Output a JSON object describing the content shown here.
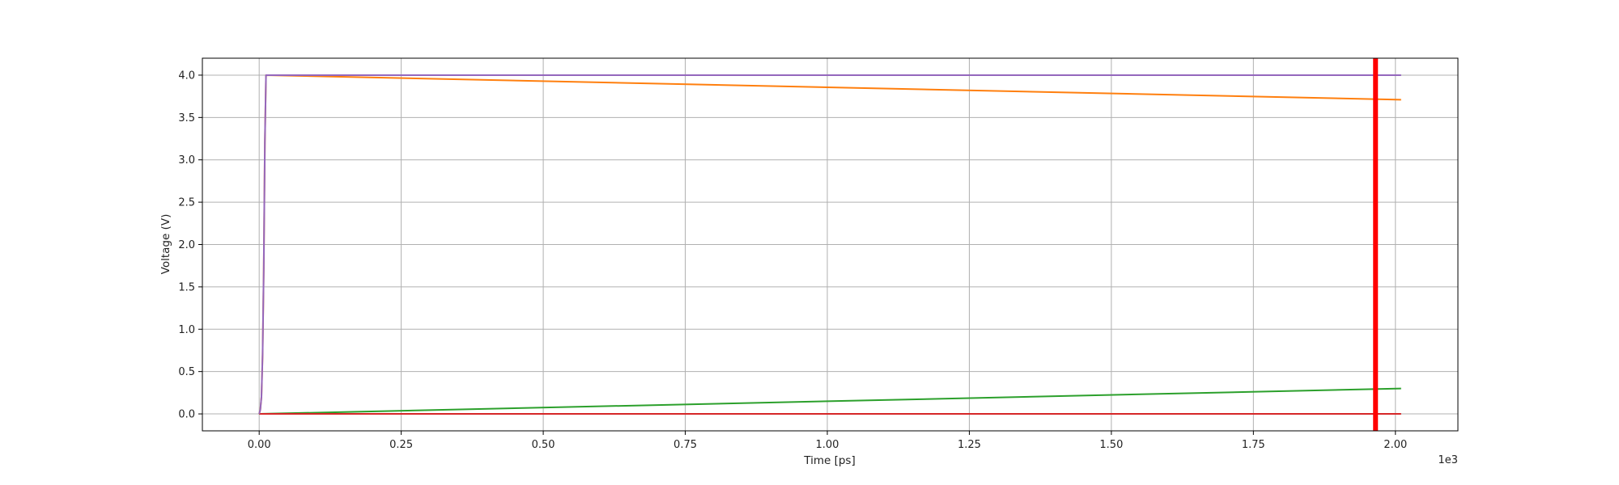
{
  "chart_data": {
    "type": "line",
    "xlabel": "Time [ps]",
    "ylabel": "Voltage (V)",
    "x_offset_label": "1e3",
    "x_scale": 1000,
    "xlim": [
      -100,
      2110
    ],
    "ylim": [
      -0.2,
      4.2
    ],
    "x_ticks": [
      0,
      250,
      500,
      750,
      1000,
      1250,
      1500,
      1750,
      2000
    ],
    "x_tick_labels": [
      "0.00",
      "0.25",
      "0.50",
      "0.75",
      "1.00",
      "1.25",
      "1.50",
      "1.75",
      "2.00"
    ],
    "y_ticks": [
      0,
      0.5,
      1,
      1.5,
      2,
      2.5,
      3,
      3.5,
      4
    ],
    "y_tick_labels": [
      "0.0",
      "0.5",
      "1.0",
      "1.5",
      "2.0",
      "2.5",
      "3.0",
      "3.5",
      "4.0"
    ],
    "grid": true,
    "series": [
      {
        "color": "#ff7f0e",
        "points": [
          [
            0,
            0
          ],
          [
            2,
            0.05
          ],
          [
            4,
            0.2
          ],
          [
            6,
            0.7
          ],
          [
            8,
            1.7
          ],
          [
            10,
            3.2
          ],
          [
            12,
            4.0
          ],
          [
            2010,
            3.71
          ]
        ]
      },
      {
        "color": "#2ca02c",
        "points": [
          [
            0,
            0
          ],
          [
            2010,
            0.3
          ]
        ]
      },
      {
        "color": "#d62728",
        "points": [
          [
            0,
            0
          ],
          [
            2010,
            0
          ]
        ]
      },
      {
        "color": "#9467bd",
        "points": [
          [
            0,
            0
          ],
          [
            2,
            0.05
          ],
          [
            4,
            0.2
          ],
          [
            6,
            0.7
          ],
          [
            8,
            1.7
          ],
          [
            10,
            3.2
          ],
          [
            12,
            4.0
          ],
          [
            2010,
            4.0
          ]
        ]
      }
    ],
    "marker_line": {
      "x": 1965,
      "color": "#ff0000"
    }
  }
}
